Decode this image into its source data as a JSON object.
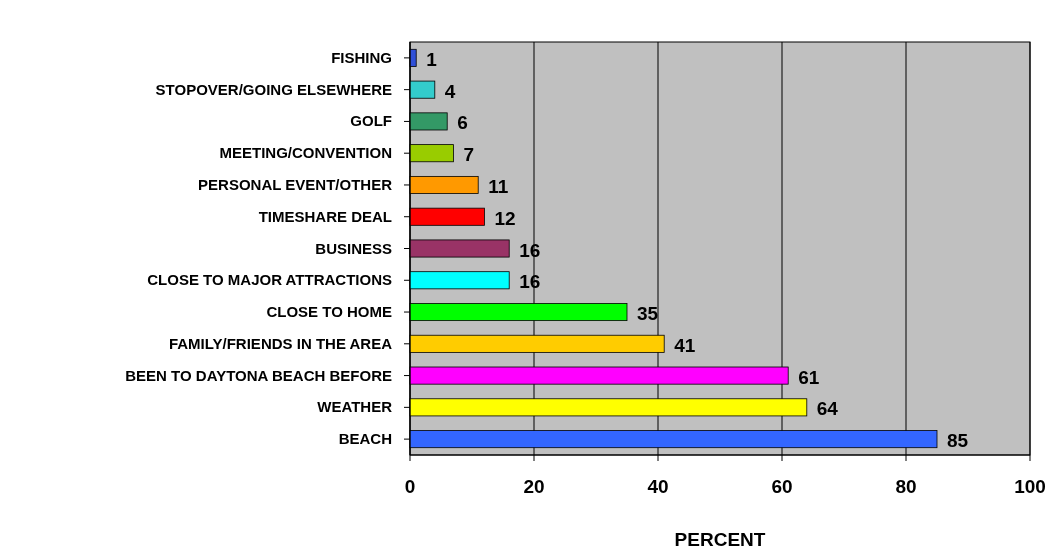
{
  "chart_data": {
    "type": "bar",
    "orientation": "horizontal",
    "xlabel": "PERCENT",
    "categories": [
      "FISHING",
      "STOPOVER/GOING ELSEWHERE",
      "GOLF",
      "MEETING/CONVENTION",
      "PERSONAL EVENT/OTHER",
      "TIMESHARE DEAL",
      "BUSINESS",
      "CLOSE TO MAJOR ATTRACTIONS",
      "CLOSE TO HOME",
      "FAMILY/FRIENDS IN THE AREA",
      "BEEN TO DAYTONA BEACH BEFORE",
      "WEATHER",
      "BEACH"
    ],
    "values": [
      1,
      4,
      6,
      7,
      11,
      12,
      16,
      16,
      35,
      41,
      61,
      64,
      85
    ],
    "colors": [
      "#3050d8",
      "#33cccc",
      "#339966",
      "#99cc00",
      "#ff9900",
      "#ff0000",
      "#993366",
      "#00ffff",
      "#00ff00",
      "#ffcc00",
      "#ff00ff",
      "#ffff00",
      "#3366ff"
    ],
    "xlim": [
      0,
      100
    ],
    "xticks": [
      0,
      20,
      40,
      60,
      80,
      100
    ],
    "grid": "x",
    "data_labels": true
  }
}
